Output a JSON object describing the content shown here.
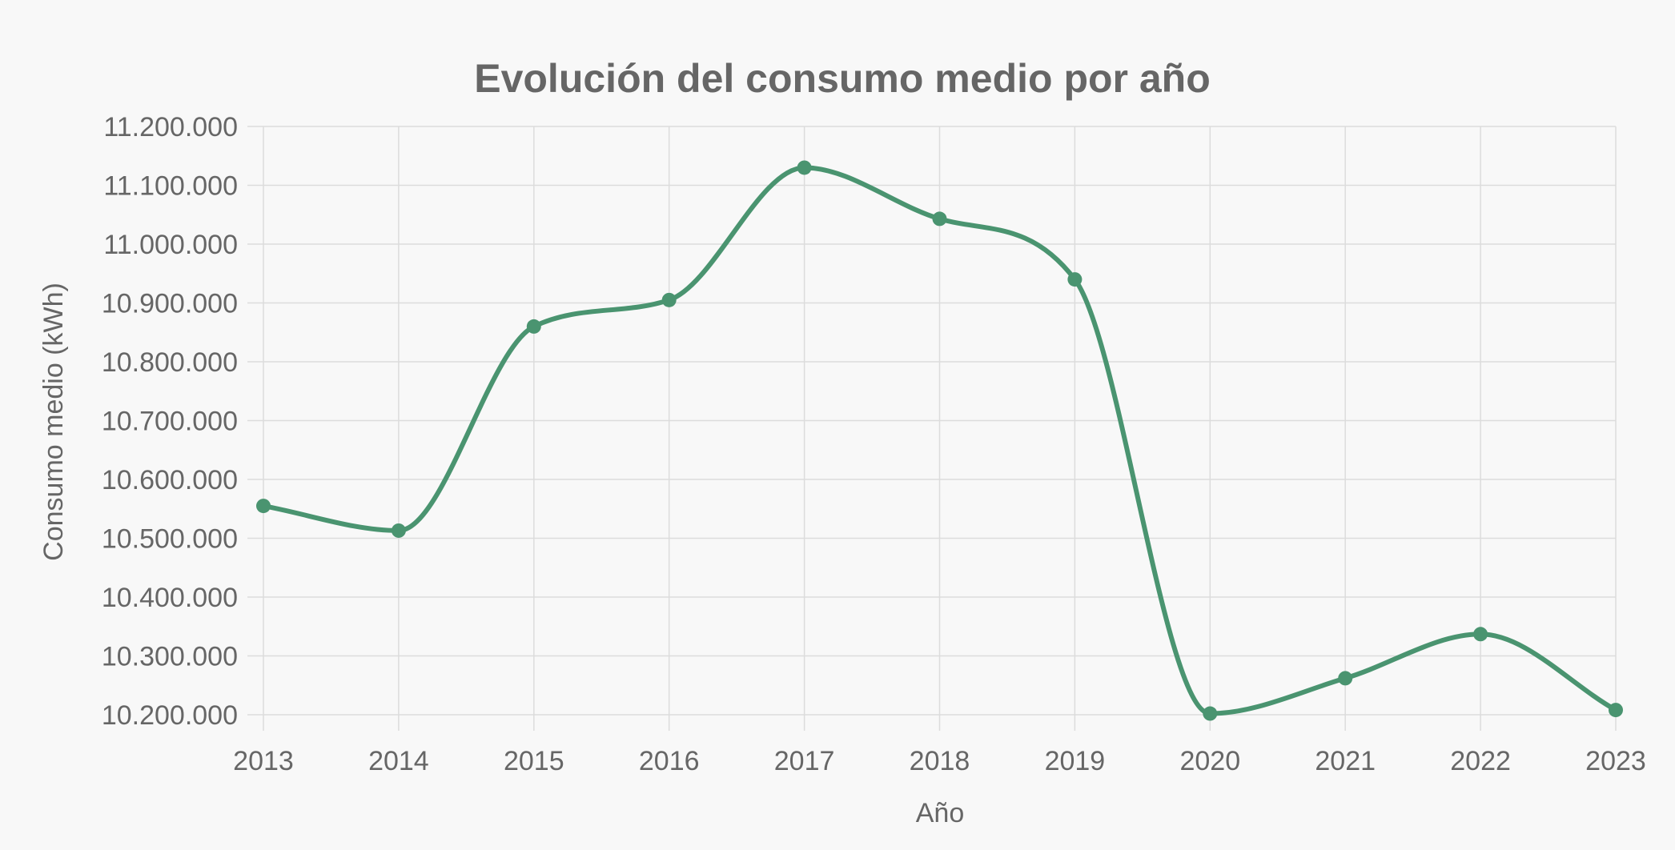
{
  "chart_data": {
    "type": "line",
    "title": "Evolución del consumo medio por año",
    "xlabel": "Año",
    "ylabel": "Consumo medio (kWh)",
    "categories": [
      "2013",
      "2014",
      "2015",
      "2016",
      "2017",
      "2018",
      "2019",
      "2020",
      "2021",
      "2022",
      "2023"
    ],
    "series": [
      {
        "values": [
          10555000,
          10513000,
          10860000,
          10905000,
          11130000,
          11043000,
          10940000,
          10202000,
          10262000,
          10337000,
          10208000
        ]
      }
    ],
    "ylim": [
      10200000,
      11200000
    ],
    "yticks": [
      "11.200.000",
      "11.100.000",
      "11.000.000",
      "10.900.000",
      "10.800.000",
      "10.700.000",
      "10.600.000",
      "10.500.000",
      "10.400.000",
      "10.300.000",
      "10.200.000"
    ],
    "grid": true,
    "legend": "none",
    "colors": {
      "line": "#4a9470",
      "grid": "#dcdcdc",
      "text": "#666666"
    }
  }
}
